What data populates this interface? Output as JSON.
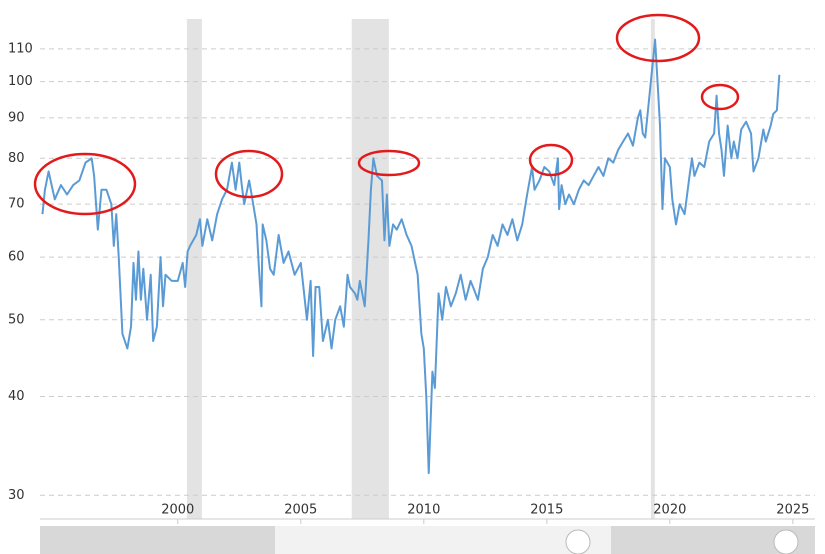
{
  "chart_data": {
    "type": "line",
    "log_scale": true,
    "grid": true,
    "xlim": [
      1994.4,
      2025.9
    ],
    "ylim": [
      28,
      120
    ],
    "xticks": [
      2000,
      2005,
      2010,
      2015,
      2020,
      2025
    ],
    "yticks": [
      30,
      40,
      50,
      60,
      70,
      80,
      90,
      100,
      110
    ],
    "shaded_periods": [
      [
        2000.37,
        2000.98
      ],
      [
        2007.07,
        2008.58
      ],
      [
        2019.23,
        2019.39
      ]
    ],
    "series": [
      {
        "color": "#5b9bd5",
        "x": [
          1994.5,
          1994.6,
          1994.75,
          1995.0,
          1995.25,
          1995.5,
          1995.75,
          1996.0,
          1996.25,
          1996.5,
          1996.6,
          1996.75,
          1996.9,
          1997.1,
          1997.3,
          1997.4,
          1997.5,
          1997.6,
          1997.75,
          1997.95,
          1998.1,
          1998.2,
          1998.3,
          1998.4,
          1998.5,
          1998.6,
          1998.75,
          1998.9,
          1999.0,
          1999.15,
          1999.3,
          1999.4,
          1999.5,
          1999.75,
          2000.0,
          2000.2,
          2000.3,
          2000.4,
          2000.5,
          2000.75,
          2000.9,
          2001.0,
          2001.2,
          2001.4,
          2001.6,
          2001.8,
          2002.0,
          2002.1,
          2002.2,
          2002.35,
          2002.5,
          2002.6,
          2002.7,
          2002.9,
          2003.0,
          2003.2,
          2003.3,
          2003.4,
          2003.45,
          2003.6,
          2003.75,
          2003.9,
          2004.1,
          2004.3,
          2004.5,
          2004.75,
          2005.0,
          2005.25,
          2005.4,
          2005.5,
          2005.6,
          2005.75,
          2005.9,
          2006.1,
          2006.25,
          2006.4,
          2006.6,
          2006.75,
          2006.9,
          2007.0,
          2007.2,
          2007.3,
          2007.4,
          2007.6,
          2007.75,
          2007.85,
          2007.95,
          2008.1,
          2008.3,
          2008.4,
          2008.5,
          2008.6,
          2008.75,
          2008.9,
          2009.1,
          2009.3,
          2009.5,
          2009.75,
          2009.9,
          2010.0,
          2010.1,
          2010.2,
          2010.35,
          2010.45,
          2010.6,
          2010.75,
          2010.9,
          2011.1,
          2011.3,
          2011.5,
          2011.7,
          2011.9,
          2012.0,
          2012.2,
          2012.4,
          2012.6,
          2012.8,
          2013.0,
          2013.2,
          2013.4,
          2013.6,
          2013.8,
          2014.0,
          2014.2,
          2014.4,
          2014.5,
          2014.7,
          2014.9,
          2015.1,
          2015.3,
          2015.45,
          2015.5,
          2015.6,
          2015.75,
          2015.9,
          2016.1,
          2016.3,
          2016.5,
          2016.7,
          2016.9,
          2017.1,
          2017.3,
          2017.5,
          2017.7,
          2017.9,
          2018.1,
          2018.3,
          2018.5,
          2018.7,
          2018.8,
          2018.9,
          2019.0,
          2019.2,
          2019.4,
          2019.5,
          2019.6,
          2019.7,
          2019.8,
          2020.0,
          2020.1,
          2020.25,
          2020.4,
          2020.6,
          2020.8,
          2020.9,
          2021.0,
          2021.2,
          2021.4,
          2021.6,
          2021.8,
          2021.9,
          2022.0,
          2022.1,
          2022.2,
          2022.35,
          2022.5,
          2022.6,
          2022.75,
          2022.9,
          2023.1,
          2023.3,
          2023.4,
          2023.6,
          2023.8,
          2023.9,
          2024.1,
          2024.2,
          2024.35,
          2024.45
        ],
        "values": [
          68,
          73,
          77,
          71,
          74,
          72,
          74,
          75,
          79,
          80,
          76,
          65,
          73,
          73,
          70,
          62,
          68,
          60,
          48,
          46,
          49,
          59,
          53,
          61,
          53,
          58,
          50,
          57,
          47,
          49,
          60,
          52,
          57,
          56,
          56,
          59,
          55,
          61,
          62,
          64,
          67,
          62,
          67,
          63,
          68,
          71,
          73,
          76,
          79,
          73,
          79,
          74,
          70,
          75,
          72,
          66,
          58,
          52,
          66,
          63,
          58,
          57,
          64,
          59,
          61,
          57,
          59,
          50,
          56,
          45,
          55,
          55,
          47,
          50,
          46,
          50,
          52,
          49,
          57,
          55,
          54,
          53,
          56,
          52,
          63,
          73,
          80,
          76,
          75,
          63,
          72,
          62,
          66,
          65,
          67,
          64,
          62,
          57,
          48,
          46,
          40,
          32,
          43,
          41,
          54,
          50,
          55,
          52,
          54,
          57,
          53,
          56,
          55,
          53,
          58,
          60,
          64,
          62,
          66,
          64,
          67,
          63,
          66,
          72,
          78,
          73,
          75,
          78,
          77,
          74,
          80,
          69,
          74,
          70,
          72,
          70,
          73,
          75,
          74,
          76,
          78,
          76,
          80,
          79,
          82,
          84,
          86,
          83,
          90,
          92,
          86,
          85,
          98,
          113,
          100,
          88,
          69,
          80,
          78,
          71,
          66,
          70,
          68,
          76,
          80,
          76,
          79,
          78,
          84,
          86,
          96,
          86,
          82,
          76,
          88,
          80,
          84,
          80,
          87,
          89,
          86,
          77,
          80,
          87,
          84,
          88,
          91,
          92,
          102
        ]
      }
    ]
  }
}
